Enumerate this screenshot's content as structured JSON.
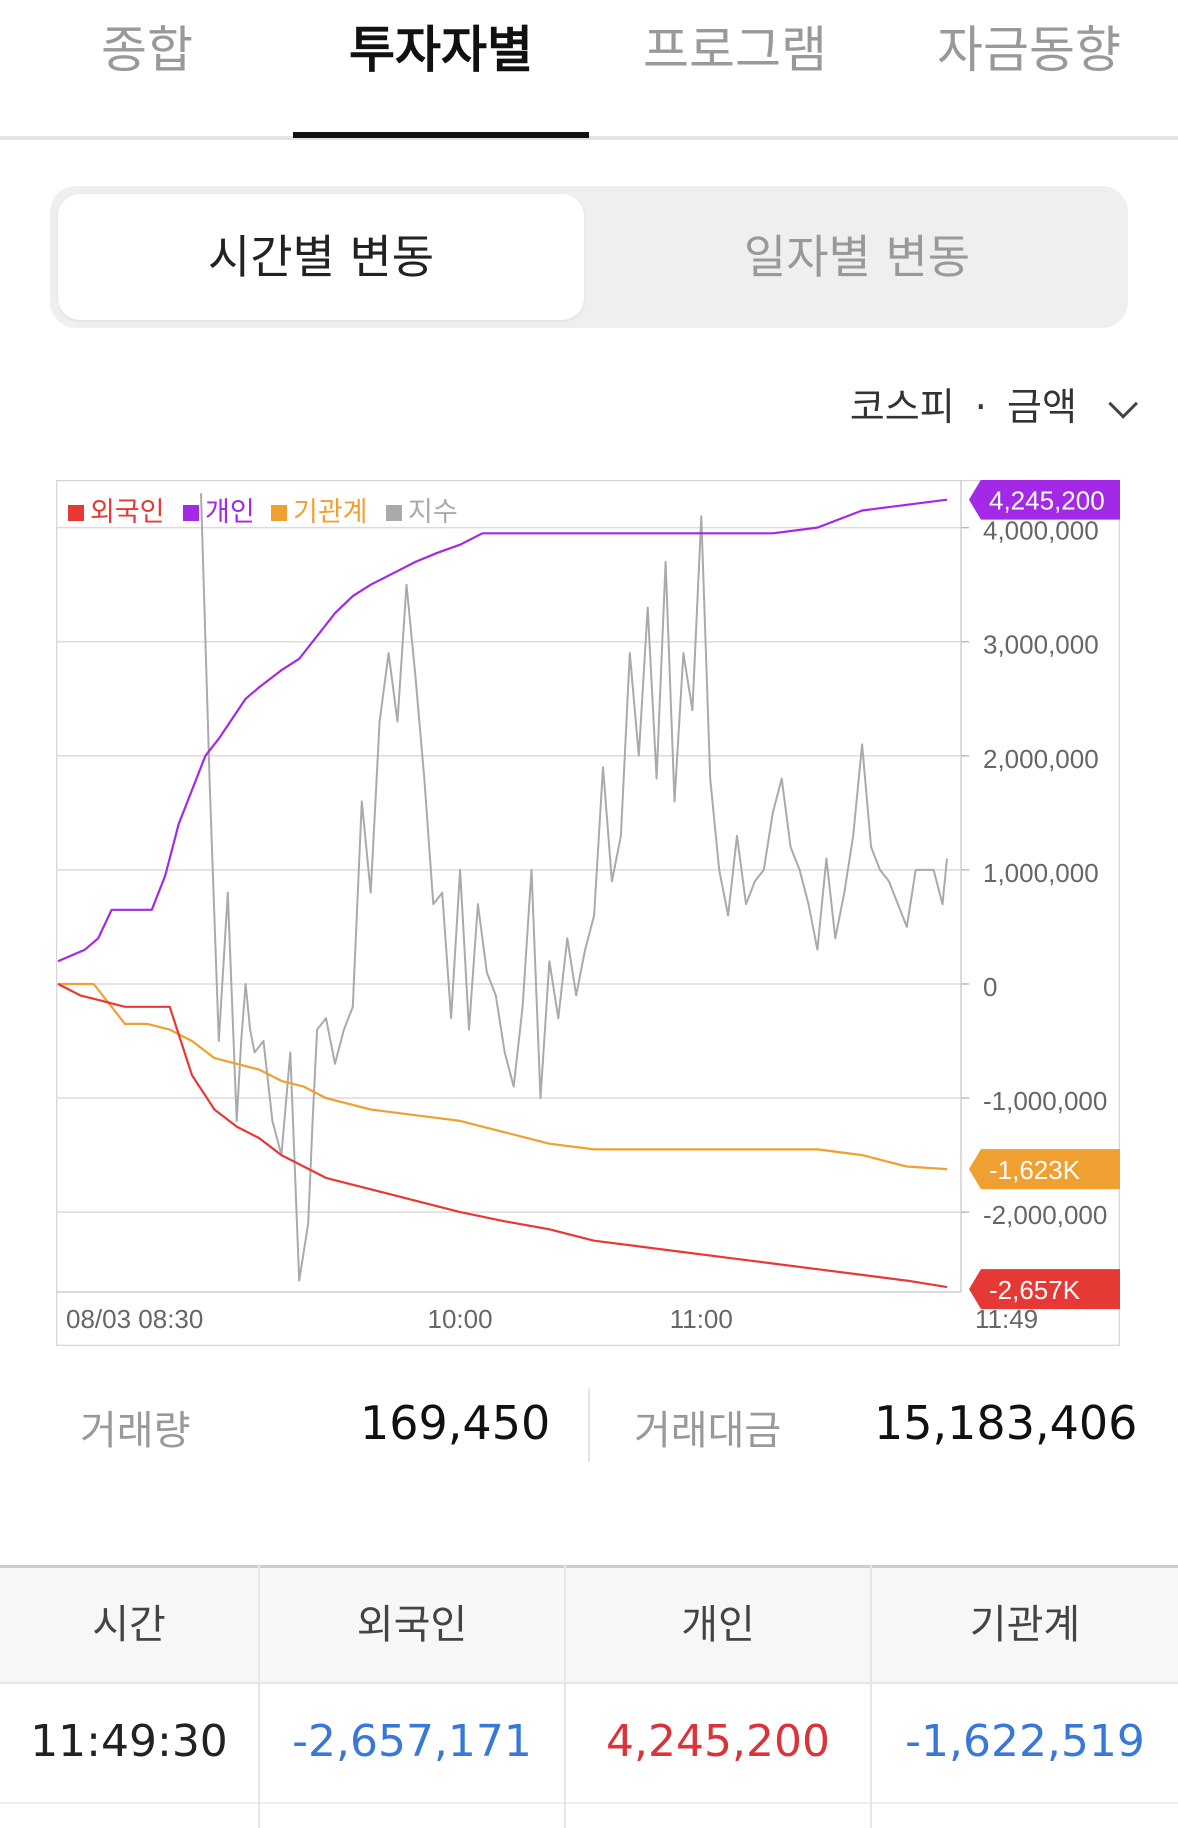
{
  "tabs": [
    "종합",
    "투자자별",
    "프로그램",
    "자금동향"
  ],
  "segments": [
    "시간별 변동",
    "일자별 변동"
  ],
  "market_select": {
    "market": "코스피",
    "sep": "·",
    "metric": "금액"
  },
  "legend": [
    {
      "label": "외국인",
      "color": "#e53935"
    },
    {
      "label": "개인",
      "color": "#a329e6"
    },
    {
      "label": "기관계",
      "color": "#f0a030"
    },
    {
      "label": "지수",
      "color": "#aaaaaa"
    }
  ],
  "chart_data": {
    "type": "line",
    "x_ticks": [
      "08/03 08:30",
      "10:00",
      "11:00",
      "11:49"
    ],
    "y_ticks": [
      "4,000,000",
      "3,000,000",
      "2,000,000",
      "1,000,000",
      "0",
      "-1,000,000",
      "-2,000,000"
    ],
    "y_tick_values": [
      4000000,
      3000000,
      2000000,
      1000000,
      0,
      -1000000,
      -2000000
    ],
    "ylim": [
      -2700000,
      4400000
    ],
    "end_labels": [
      {
        "text": "4,245,200",
        "value": 4245200,
        "color": "#a329e6"
      },
      {
        "text": "-1,623K",
        "value": -1622519,
        "color": "#f0a030"
      },
      {
        "text": "-2,657K",
        "value": -2657171,
        "color": "#e53935"
      }
    ],
    "grid": true,
    "legend_position": "top-left",
    "series": [
      {
        "name": "개인",
        "color": "#a329e6",
        "x": [
          0,
          3,
          6,
          9,
          12,
          15,
          18,
          21,
          24,
          27,
          30,
          33,
          36,
          42,
          45,
          50,
          54,
          58,
          62,
          66,
          70,
          75,
          80,
          85,
          90,
          95,
          100,
          110,
          120,
          130,
          140,
          150,
          160,
          170,
          180,
          190,
          199
        ],
        "y": [
          200000,
          250000,
          300000,
          400000,
          650000,
          650000,
          650000,
          650000,
          950000,
          1400000,
          1700000,
          2000000,
          2150000,
          2500000,
          2600000,
          2750000,
          2850000,
          3050000,
          3250000,
          3400000,
          3500000,
          3600000,
          3700000,
          3780000,
          3850000,
          3950000,
          3950000,
          3950000,
          3950000,
          3950000,
          3950000,
          3950000,
          3950000,
          4000000,
          4150000,
          4200000,
          4245200
        ]
      },
      {
        "name": "외국인",
        "color": "#e53935",
        "x": [
          0,
          5,
          10,
          15,
          20,
          25,
          30,
          35,
          40,
          45,
          50,
          60,
          70,
          80,
          90,
          100,
          110,
          120,
          130,
          140,
          150,
          160,
          170,
          180,
          190,
          199
        ],
        "y": [
          0,
          -100000,
          -150000,
          -200000,
          -200000,
          -200000,
          -800000,
          -1100000,
          -1250000,
          -1350000,
          -1500000,
          -1700000,
          -1800000,
          -1900000,
          -2000000,
          -2080000,
          -2150000,
          -2250000,
          -2300000,
          -2350000,
          -2400000,
          -2450000,
          -2500000,
          -2550000,
          -2600000,
          -2657171
        ]
      },
      {
        "name": "기관계",
        "color": "#f0a030",
        "x": [
          0,
          8,
          15,
          20,
          25,
          30,
          35,
          40,
          45,
          50,
          55,
          60,
          70,
          80,
          90,
          100,
          110,
          120,
          130,
          140,
          150,
          160,
          170,
          180,
          190,
          199
        ],
        "y": [
          0,
          0,
          -350000,
          -350000,
          -400000,
          -500000,
          -650000,
          -700000,
          -750000,
          -850000,
          -900000,
          -1000000,
          -1100000,
          -1150000,
          -1200000,
          -1300000,
          -1400000,
          -1450000,
          -1450000,
          -1450000,
          -1450000,
          -1450000,
          -1450000,
          -1500000,
          -1600000,
          -1622519
        ]
      },
      {
        "name": "지수",
        "color": "#aaaaaa",
        "x": [
          32,
          34,
          36,
          38,
          40,
          41,
          42,
          43,
          44,
          46,
          48,
          50,
          52,
          54,
          56,
          57,
          58,
          60,
          62,
          64,
          66,
          68,
          70,
          72,
          74,
          76,
          78,
          80,
          82,
          84,
          86,
          88,
          90,
          92,
          94,
          96,
          98,
          100,
          102,
          104,
          106,
          108,
          110,
          112,
          114,
          116,
          118,
          120,
          122,
          124,
          126,
          128,
          130,
          132,
          134,
          136,
          138,
          140,
          142,
          144,
          146,
          148,
          150,
          152,
          154,
          156,
          158,
          160,
          162,
          164,
          166,
          168,
          170,
          172,
          174,
          176,
          178,
          180,
          182,
          184,
          186,
          188,
          190,
          192,
          194,
          196,
          198,
          199
        ],
        "y": [
          4300000,
          1700000,
          -500000,
          800000,
          -1200000,
          -500000,
          0,
          -400000,
          -600000,
          -500000,
          -1200000,
          -1500000,
          -600000,
          -2600000,
          -2100000,
          -1200000,
          -400000,
          -300000,
          -700000,
          -400000,
          -200000,
          1600000,
          800000,
          2300000,
          2900000,
          2300000,
          3500000,
          2700000,
          1800000,
          700000,
          800000,
          -300000,
          1000000,
          -400000,
          700000,
          100000,
          -100000,
          -600000,
          -900000,
          -200000,
          1000000,
          -1000000,
          200000,
          -300000,
          400000,
          -100000,
          300000,
          600000,
          1900000,
          900000,
          1300000,
          2900000,
          2000000,
          3300000,
          1800000,
          3700000,
          1600000,
          2900000,
          2400000,
          4100000,
          1800000,
          1000000,
          600000,
          1300000,
          700000,
          900000,
          1000000,
          1500000,
          1800000,
          1200000,
          1000000,
          700000,
          300000,
          1100000,
          400000,
          800000,
          1300000,
          2100000,
          1200000,
          1000000,
          900000,
          700000,
          500000,
          1000000,
          1000000,
          1000000,
          700000,
          1100000
        ]
      }
    ]
  },
  "stats": {
    "volume_label": "거래량",
    "volume": "169,450",
    "amount_label": "거래대금",
    "amount": "15,183,406"
  },
  "table": {
    "headers": [
      "시간",
      "외국인",
      "개인",
      "기관계"
    ],
    "rows": [
      {
        "time": "11:49:30",
        "foreign": "-2,657,171",
        "individual": "4,245,200",
        "institution": "-1,622,519"
      }
    ]
  }
}
